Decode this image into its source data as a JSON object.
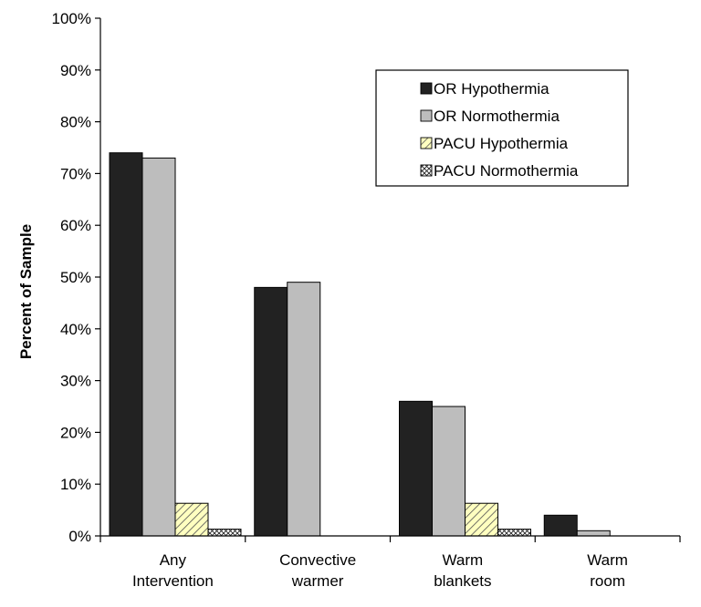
{
  "chart_data": {
    "type": "bar",
    "title": "",
    "xlabel": "",
    "ylabel": "Percent of Sample",
    "ylim": [
      0,
      100
    ],
    "y_ticks": [
      "0%",
      "10%",
      "20%",
      "30%",
      "40%",
      "50%",
      "60%",
      "70%",
      "80%",
      "90%",
      "100%"
    ],
    "grid": false,
    "legend_position": "top-right",
    "categories": [
      [
        "Any",
        "Intervention"
      ],
      [
        "Convective",
        "warmer"
      ],
      [
        "Warm",
        "blankets"
      ],
      [
        "Warm",
        "room"
      ]
    ],
    "series": [
      {
        "name": "OR Hypothermia",
        "values": [
          74,
          48,
          26,
          4
        ],
        "color": "#222222",
        "pattern": "solid"
      },
      {
        "name": "OR Normothermia",
        "values": [
          73,
          49,
          25,
          1
        ],
        "color": "#bdbdbd",
        "pattern": "solid"
      },
      {
        "name": "PACU Hypothermia",
        "values": [
          6.3,
          0,
          6.3,
          0
        ],
        "color": "#ffffc0",
        "pattern": "diagonal-stripes"
      },
      {
        "name": "PACU Normothermia",
        "values": [
          1.3,
          0,
          1.3,
          0
        ],
        "color": "#ffffff",
        "pattern": "crosshatch"
      }
    ]
  }
}
